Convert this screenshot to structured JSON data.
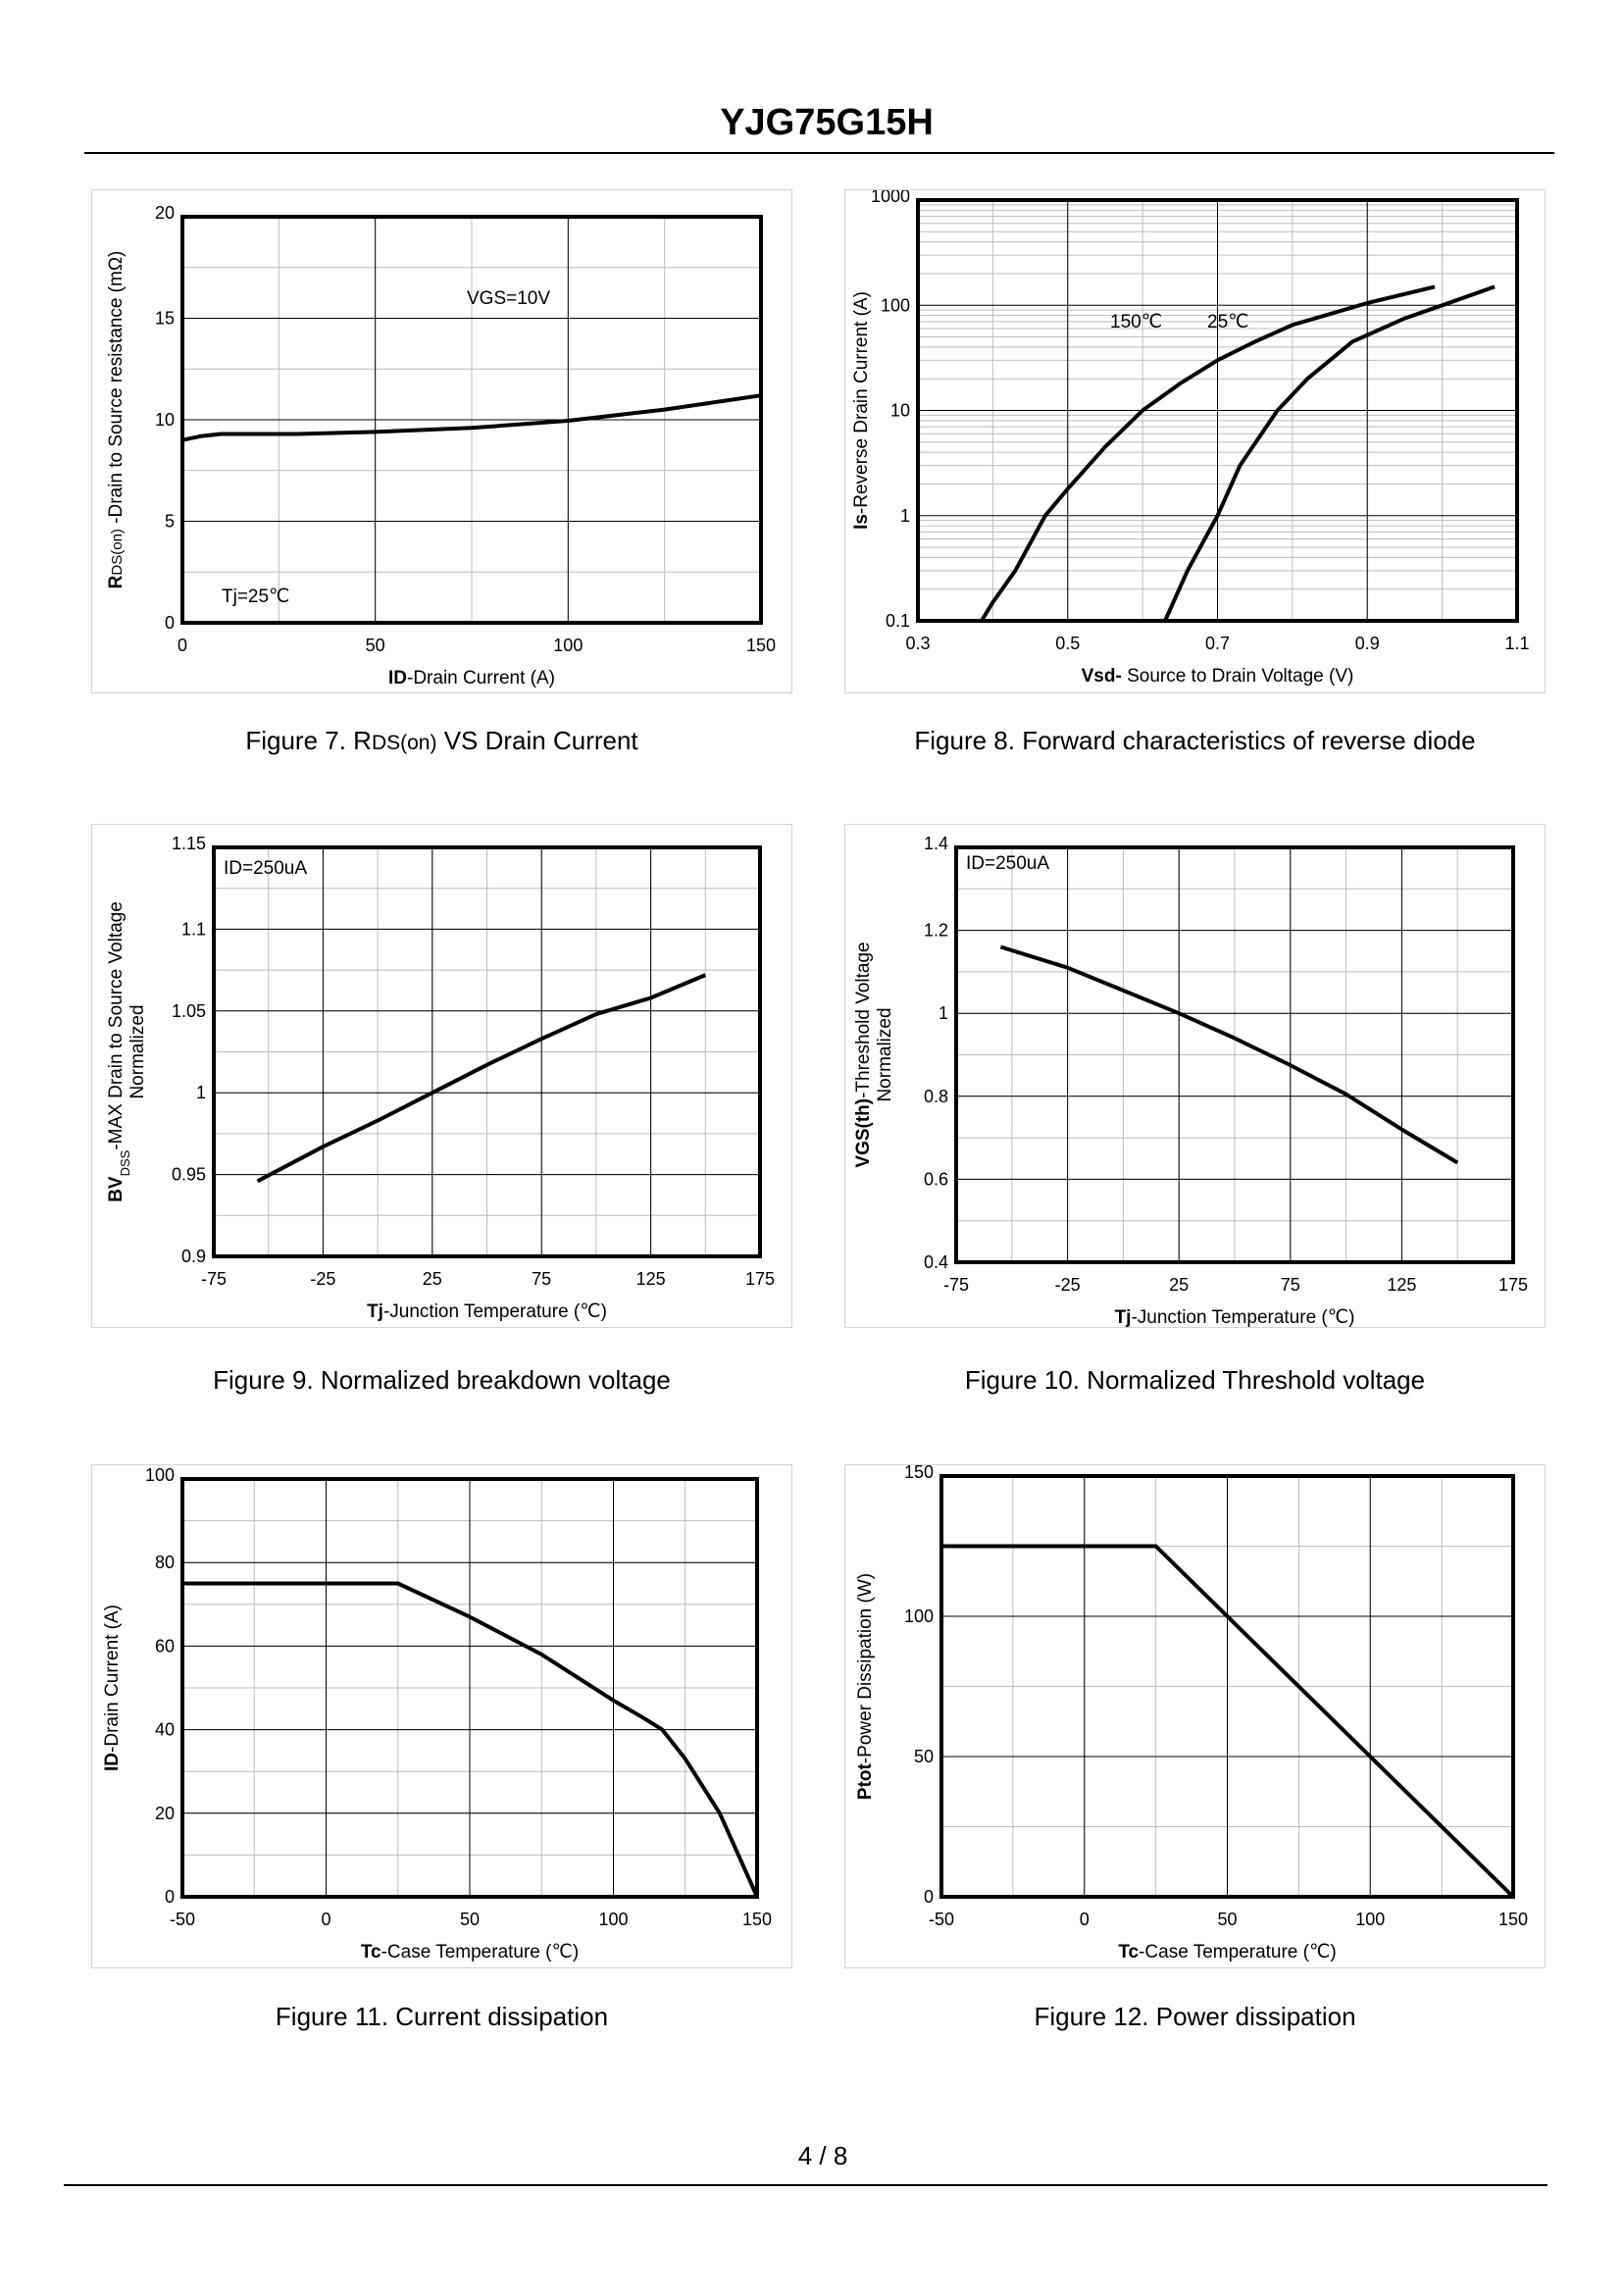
{
  "header": {
    "title": "YJG75G15H"
  },
  "footer": {
    "page": "4 / 8"
  },
  "captions": [
    {
      "prefix": "Figure 7.  R",
      "small": "DS(on)",
      "suffix": " VS Drain Current"
    },
    {
      "prefix": "Figure 8.  Forward characteristics of reverse diode",
      "small": "",
      "suffix": ""
    },
    {
      "prefix": "Figure 9.  Normalized breakdown voltage",
      "small": "",
      "suffix": ""
    },
    {
      "prefix": "Figure 10.  Normalized Threshold voltage",
      "small": "",
      "suffix": ""
    },
    {
      "prefix": "Figure 11.  Current dissipation",
      "small": "",
      "suffix": ""
    },
    {
      "prefix": "Figure 12.  Power dissipation",
      "small": "",
      "suffix": ""
    }
  ],
  "chart_data": [
    {
      "type": "line",
      "xlabel": [
        {
          "text": "ID",
          "bold": true
        },
        {
          "text": "-Drain Current  (A)"
        }
      ],
      "ylabel_lines": [
        [
          {
            "text": "R",
            "bold": true
          },
          {
            "text": "DS(on)",
            "small": true
          },
          {
            "text": " -Drain to Source resistance  (mΩ)"
          }
        ]
      ],
      "xlim": [
        0,
        150
      ],
      "ylim": [
        0,
        20
      ],
      "yscale": "linear",
      "xticks": [
        0,
        50,
        100,
        150
      ],
      "xtick_labels": [
        "0",
        "50",
        "100",
        "150"
      ],
      "yticks": [
        0,
        5,
        10,
        15,
        20
      ],
      "ytick_labels": [
        "0",
        "5",
        "10",
        "15",
        "20"
      ],
      "xminor": 25,
      "yminor": 2.5,
      "grid": true,
      "annotations": [
        "VGS=10V",
        "Tj=25℃"
      ],
      "series": [
        {
          "points": [
            [
              0,
              9.0
            ],
            [
              5,
              9.2
            ],
            [
              10,
              9.3
            ],
            [
              30,
              9.3
            ],
            [
              50,
              9.4
            ],
            [
              75,
              9.6
            ],
            [
              100,
              9.95
            ],
            [
              125,
              10.5
            ],
            [
              150,
              11.2
            ]
          ]
        }
      ]
    },
    {
      "type": "line",
      "xlabel": [
        {
          "text": "Vsd-",
          "bold": true
        },
        {
          "text": " Source to Drain Voltage (V)"
        }
      ],
      "ylabel_lines": [
        [
          {
            "text": "Is",
            "bold": true
          },
          {
            "text": "-Reverse  Drain Current  (A)"
          }
        ]
      ],
      "xlim": [
        0.3,
        1.1
      ],
      "ylim": [
        0.1,
        1000
      ],
      "yscale": "log",
      "xticks": [
        0.3,
        0.5,
        0.7,
        0.9,
        1.1
      ],
      "xtick_labels": [
        "0.3",
        "0.5",
        "0.7",
        "0.9",
        "1.1"
      ],
      "yticks": [
        0.1,
        1,
        10,
        100,
        1000
      ],
      "ytick_labels": [
        "0.1",
        "1",
        "10",
        "100",
        "1000"
      ],
      "xminor": 0.1,
      "grid": true,
      "annotations": [
        "150℃",
        "25℃"
      ],
      "series": [
        {
          "name": "150℃",
          "points": [
            [
              0.385,
              0.1
            ],
            [
              0.4,
              0.15
            ],
            [
              0.43,
              0.3
            ],
            [
              0.47,
              1.0
            ],
            [
              0.5,
              1.8
            ],
            [
              0.55,
              4.5
            ],
            [
              0.6,
              10
            ],
            [
              0.65,
              18
            ],
            [
              0.7,
              30
            ],
            [
              0.75,
              45
            ],
            [
              0.8,
              65
            ],
            [
              0.9,
              105
            ],
            [
              0.99,
              150
            ]
          ]
        },
        {
          "name": "25℃",
          "points": [
            [
              0.63,
              0.1
            ],
            [
              0.66,
              0.3
            ],
            [
              0.7,
              1.0
            ],
            [
              0.73,
              3
            ],
            [
              0.78,
              10
            ],
            [
              0.82,
              20
            ],
            [
              0.88,
              45
            ],
            [
              0.95,
              75
            ],
            [
              1.0,
              100
            ],
            [
              1.07,
              150
            ]
          ]
        }
      ]
    },
    {
      "type": "line",
      "xlabel": [
        {
          "text": "Tj",
          "bold": true
        },
        {
          "text": "-Junction  Temperature  (℃)"
        }
      ],
      "ylabel_lines": [
        [
          {
            "text": "BV",
            "bold": true
          },
          {
            "text": "DSS",
            "sub": true
          },
          {
            "text": "-MAX  Drain to Source  Voltage"
          }
        ],
        [
          {
            "text": "Normalized"
          }
        ]
      ],
      "xlim": [
        -75,
        175
      ],
      "ylim": [
        0.9,
        1.15
      ],
      "yscale": "linear",
      "xticks": [
        -75,
        -25,
        25,
        75,
        125,
        175
      ],
      "xtick_labels": [
        "-75",
        "-25",
        "25",
        "75",
        "125",
        "175"
      ],
      "yticks": [
        0.9,
        0.95,
        1.0,
        1.05,
        1.1,
        1.15
      ],
      "ytick_labels": [
        "0.9",
        "0.95",
        "1",
        "1.05",
        "1.1",
        "1.15"
      ],
      "xminor": 25,
      "yminor": 0.025,
      "grid": true,
      "annotations": [
        "ID=250uA"
      ],
      "series": [
        {
          "points": [
            [
              -55,
              0.946
            ],
            [
              -25,
              0.967
            ],
            [
              0,
              0.983
            ],
            [
              25,
              1.0
            ],
            [
              50,
              1.017
            ],
            [
              75,
              1.033
            ],
            [
              100,
              1.048
            ],
            [
              125,
              1.058
            ],
            [
              150,
              1.072
            ]
          ]
        }
      ]
    },
    {
      "type": "line",
      "xlabel": [
        {
          "text": "Tj",
          "bold": true
        },
        {
          "text": "-Junction  Temperature  (℃)"
        }
      ],
      "ylabel_lines": [
        [
          {
            "text": "VGS(th)",
            "bold": true
          },
          {
            "text": "-Threshold  Voltage"
          }
        ],
        [
          {
            "text": "Normalized"
          }
        ]
      ],
      "xlim": [
        -75,
        175
      ],
      "ylim": [
        0.4,
        1.4
      ],
      "yscale": "linear",
      "xticks": [
        -75,
        -25,
        25,
        75,
        125,
        175
      ],
      "xtick_labels": [
        "-75",
        "-25",
        "25",
        "75",
        "125",
        "175"
      ],
      "yticks": [
        0.4,
        0.6,
        0.8,
        1.0,
        1.2,
        1.4
      ],
      "ytick_labels": [
        "0.4",
        "0.6",
        "0.8",
        "1",
        "1.2",
        "1.4"
      ],
      "xminor": 25,
      "yminor": 0.1,
      "grid": true,
      "annotations": [
        "ID=250uA"
      ],
      "series": [
        {
          "points": [
            [
              -55,
              1.16
            ],
            [
              -25,
              1.11
            ],
            [
              0,
              1.055
            ],
            [
              25,
              1.0
            ],
            [
              50,
              0.94
            ],
            [
              75,
              0.875
            ],
            [
              100,
              0.805
            ],
            [
              125,
              0.72
            ],
            [
              150,
              0.64
            ]
          ]
        }
      ]
    },
    {
      "type": "line",
      "xlabel": [
        {
          "text": "Tc",
          "bold": true
        },
        {
          "text": "-Case Temperature  (℃)"
        }
      ],
      "ylabel_lines": [
        [
          {
            "text": "ID",
            "bold": true
          },
          {
            "text": "-Drain  Current  (A)"
          }
        ]
      ],
      "xlim": [
        -50,
        150
      ],
      "ylim": [
        0,
        100
      ],
      "yscale": "linear",
      "xticks": [
        -50,
        0,
        50,
        100,
        150
      ],
      "xtick_labels": [
        "-50",
        "0",
        "50",
        "100",
        "150"
      ],
      "yticks": [
        0,
        20,
        40,
        60,
        80,
        100
      ],
      "ytick_labels": [
        "0",
        "20",
        "40",
        "60",
        "80",
        "100"
      ],
      "xminor": 25,
      "yminor": 10,
      "grid": true,
      "annotations": [],
      "series": [
        {
          "points": [
            [
              -50,
              75
            ],
            [
              25,
              75
            ],
            [
              50,
              67
            ],
            [
              75,
              58
            ],
            [
              100,
              47
            ],
            [
              110,
              43
            ],
            [
              117,
              40
            ],
            [
              125,
              33
            ],
            [
              137,
              20
            ],
            [
              150,
              0
            ]
          ]
        }
      ]
    },
    {
      "type": "line",
      "xlabel": [
        {
          "text": "Tc",
          "bold": true
        },
        {
          "text": "-Case Temperature  (℃)"
        }
      ],
      "ylabel_lines": [
        [
          {
            "text": "Ptot",
            "bold": true
          },
          {
            "text": "-Power  Dissipation  (W)"
          }
        ]
      ],
      "xlim": [
        -50,
        150
      ],
      "ylim": [
        0,
        150
      ],
      "yscale": "linear",
      "xticks": [
        -50,
        0,
        50,
        100,
        150
      ],
      "xtick_labels": [
        "-50",
        "0",
        "50",
        "100",
        "150"
      ],
      "yticks": [
        0,
        50,
        100,
        150
      ],
      "ytick_labels": [
        "0",
        "50",
        "100",
        "150"
      ],
      "xminor": 25,
      "yminor": 25,
      "grid": true,
      "annotations": [],
      "series": [
        {
          "points": [
            [
              -50,
              125
            ],
            [
              25,
              125
            ],
            [
              150,
              0
            ]
          ]
        }
      ]
    }
  ]
}
